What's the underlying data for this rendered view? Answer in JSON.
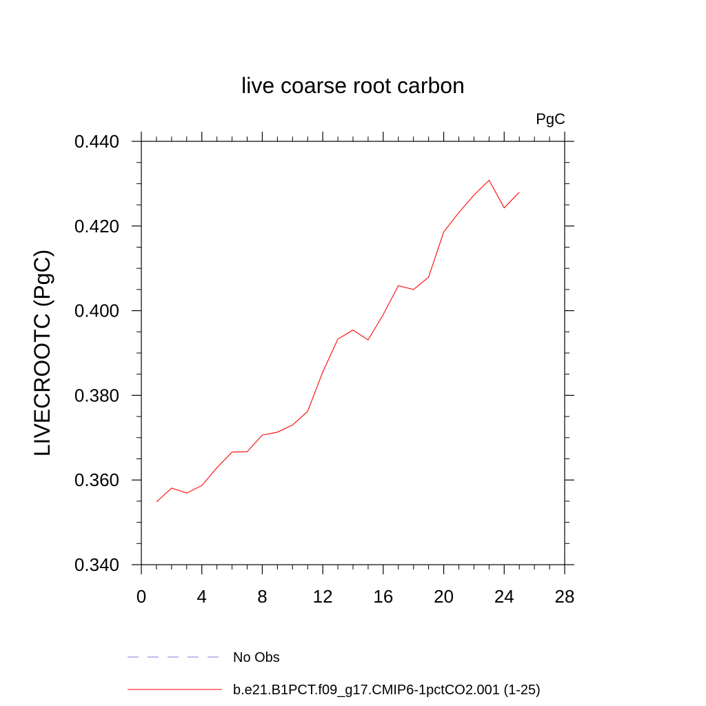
{
  "chart_data": {
    "type": "line",
    "title": "live coarse root carbon",
    "units": "PgC",
    "ylabel": "LIVECROOTC  (PgC)",
    "xlabel": "",
    "xlim": [
      0,
      28
    ],
    "ylim": [
      0.34,
      0.44
    ],
    "x_ticks": [
      0,
      4,
      8,
      12,
      16,
      20,
      24,
      28
    ],
    "x_tick_labels": [
      "0",
      "4",
      "8",
      "12",
      "16",
      "20",
      "24",
      "28"
    ],
    "y_ticks": [
      0.34,
      0.36,
      0.38,
      0.4,
      0.42,
      0.44
    ],
    "y_tick_labels": [
      "0.340",
      "0.360",
      "0.380",
      "0.400",
      "0.420",
      "0.440"
    ],
    "grid": false,
    "legend_position": "bottom",
    "series": [
      {
        "name": "No Obs",
        "color": "#7b7bd6",
        "style": "dashed",
        "x": [],
        "y": []
      },
      {
        "name": "b.e21.B1PCT.f09_g17.CMIP6-1pctCO2.001 (1-25)",
        "color": "#ff0000",
        "style": "solid",
        "x": [
          1,
          2,
          3,
          4,
          5,
          6,
          7,
          8,
          9,
          10,
          11,
          12,
          13,
          14,
          15,
          16,
          17,
          18,
          19,
          20,
          21,
          22,
          23,
          24,
          25
        ],
        "y": [
          0.3548,
          0.3581,
          0.3569,
          0.3587,
          0.3629,
          0.3666,
          0.3667,
          0.3706,
          0.3713,
          0.373,
          0.3762,
          0.3855,
          0.3933,
          0.3954,
          0.3931,
          0.3991,
          0.4059,
          0.405,
          0.4079,
          0.4186,
          0.4232,
          0.4273,
          0.4308,
          0.4243,
          0.428
        ]
      }
    ]
  }
}
